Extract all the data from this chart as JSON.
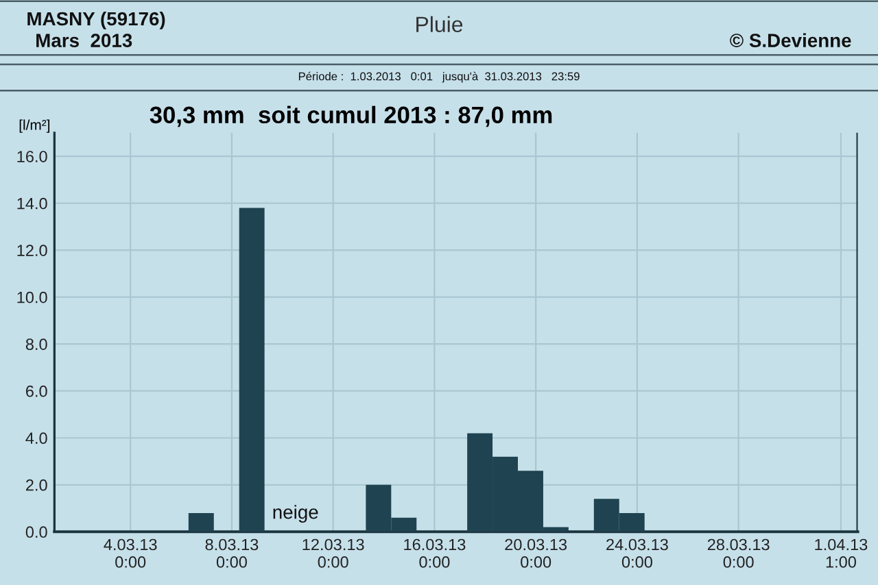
{
  "chart_data": {
    "type": "bar",
    "title": "Pluie",
    "subtitle": "30,3 mm  soit cumul 2013 : 87,0 mm",
    "ylabel": "[l/m²]",
    "annotations": [
      "MASNY (59176)",
      "Mars  2013",
      "© S.Devienne",
      "Période :  1.03.2013   0:01   jusqu'à  31.03.2013   23:59",
      "neige"
    ],
    "x": [
      "2013-03-06T19:00",
      "2013-03-08T19:00",
      "2013-03-13T19:00",
      "2013-03-14T19:00",
      "2013-03-17T19:00",
      "2013-03-18T19:00",
      "2013-03-19T19:00",
      "2013-03-20T19:00",
      "2013-03-22T19:00",
      "2013-03-23T19:00"
    ],
    "values": [
      0.8,
      13.8,
      2.0,
      0.6,
      4.2,
      3.2,
      2.6,
      0.2,
      1.4,
      0.8
    ],
    "color": "#1f4350",
    "xlim": [
      "2013-03-01",
      "2013-04-01T17:00"
    ],
    "ylim": [
      0,
      17
    ],
    "xticks": [
      {
        "value": "2013-03-04",
        "label": "4.03.13\n0:00"
      },
      {
        "value": "2013-03-08",
        "label": "8.03.13\n0:00"
      },
      {
        "value": "2013-03-12",
        "label": "12.03.13\n0:00"
      },
      {
        "value": "2013-03-16",
        "label": "16.03.13\n0:00"
      },
      {
        "value": "2013-03-20",
        "label": "20.03.13\n0:00"
      },
      {
        "value": "2013-03-24",
        "label": "24.03.13\n0:00"
      },
      {
        "value": "2013-03-28",
        "label": "28.03.13\n0:00"
      },
      {
        "value": "2013-04-01T01:00",
        "label": "1.04.13\n1:00"
      }
    ],
    "yticks": [
      {
        "value": 0,
        "label": "0.0"
      },
      {
        "value": 2,
        "label": "2.0"
      },
      {
        "value": 4,
        "label": "4.0"
      },
      {
        "value": 6,
        "label": "6.0"
      },
      {
        "value": 8,
        "label": "8.0"
      },
      {
        "value": 10,
        "label": "10.0"
      },
      {
        "value": 12,
        "label": "12.0"
      },
      {
        "value": 14,
        "label": "14.0"
      },
      {
        "value": 16,
        "label": "16.0"
      }
    ],
    "grid": true
  }
}
